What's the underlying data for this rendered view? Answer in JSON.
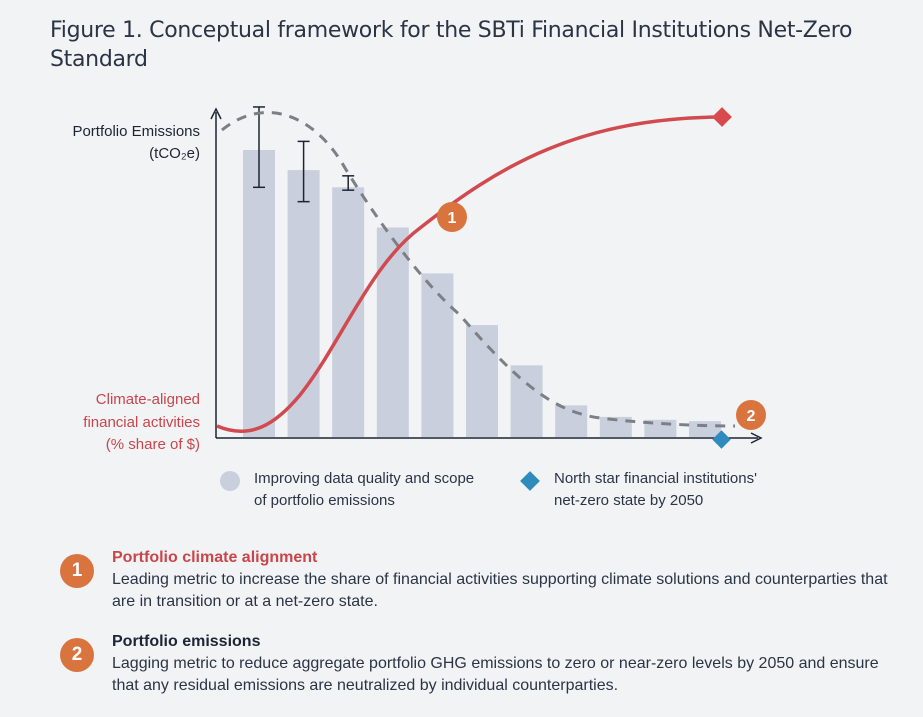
{
  "title": "Figure 1. Conceptual framework for the SBTi Financial Institutions Net-Zero Standard",
  "colors": {
    "bars": "#c9cfdd",
    "alignment_curve": "#d04a4f",
    "emissions_dashed": "#7d7f86",
    "badge": "#d9743f",
    "diamond_red": "#d94a4e",
    "diamond_blue": "#2f8bbd",
    "red_text": "#c8464b"
  },
  "chart_data": {
    "type": "bar",
    "y_axis_top_label": [
      "Portfolio Emissions",
      "(tCO₂e)"
    ],
    "y_axis_bottom_label": [
      "Climate-aligned",
      "financial activities",
      "(% share of $)"
    ],
    "bar_values": [
      100,
      93,
      87,
      73,
      57,
      39,
      25,
      11,
      7,
      6,
      5.5
    ],
    "error_bars": [
      {
        "bar": 0,
        "low": 87,
        "high": 115
      },
      {
        "bar": 1,
        "low": 82,
        "high": 103
      },
      {
        "bar": 2,
        "low": 86,
        "high": 91
      }
    ],
    "markers": [
      {
        "id": "1",
        "label": "1"
      },
      {
        "id": "2",
        "label": "2"
      }
    ]
  },
  "legend": {
    "bars": [
      "Improving data quality and scope",
      "of portfolio emissions"
    ],
    "diamond": [
      "North star financial institutions'",
      "net-zero state by 2050"
    ]
  },
  "notes": [
    {
      "badge": "1",
      "title": "Portfolio climate alignment",
      "body": "Leading metric to increase the share of financial activities supporting climate solutions and counterparties that are in transition or at a net-zero state."
    },
    {
      "badge": "2",
      "title": "Portfolio emissions",
      "body": "Lagging metric to reduce aggregate portfolio GHG emissions to zero or near-zero levels by 2050 and ensure that any residual emissions are neutralized by individual counterparties."
    }
  ]
}
